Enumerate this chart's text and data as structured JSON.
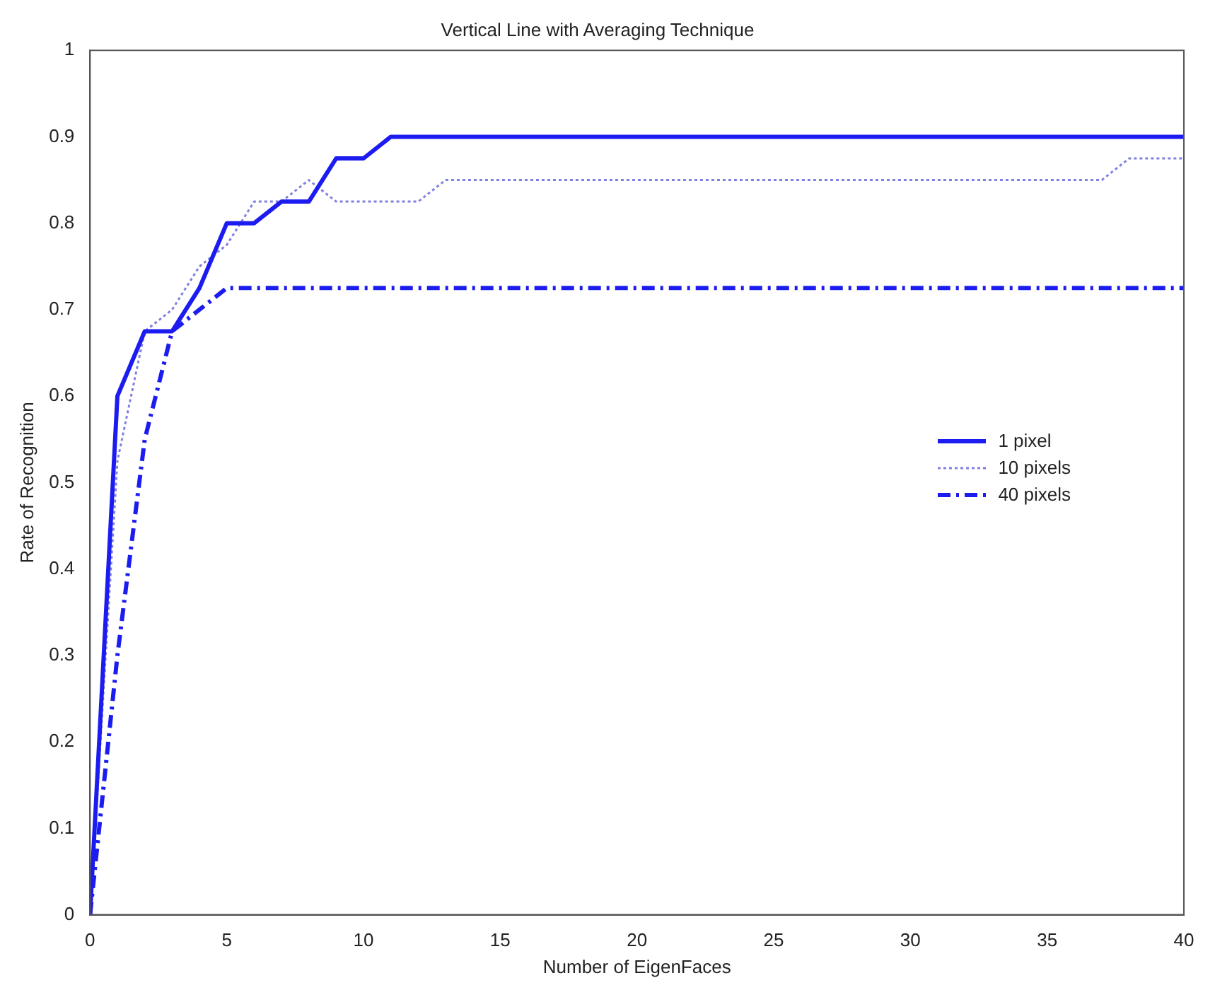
{
  "chart_data": {
    "type": "line",
    "title": "Vertical Line with Averaging Technique",
    "xlabel": "Number of EigenFaces",
    "ylabel": "Rate of Recognition",
    "x": [
      0,
      1,
      2,
      3,
      4,
      5,
      6,
      7,
      8,
      9,
      10,
      11,
      12,
      13,
      14,
      15,
      16,
      17,
      18,
      19,
      20,
      21,
      22,
      23,
      24,
      25,
      26,
      27,
      28,
      29,
      30,
      31,
      32,
      33,
      34,
      35,
      36,
      37,
      38,
      39,
      40
    ],
    "series": [
      {
        "name": "1 pixel",
        "color": "#1c1cf0",
        "line_style": "solid",
        "values": [
          0,
          0.6,
          0.675,
          0.675,
          0.725,
          0.8,
          0.8,
          0.825,
          0.825,
          0.875,
          0.875,
          0.9,
          0.9,
          0.9,
          0.9,
          0.9,
          0.9,
          0.9,
          0.9,
          0.9,
          0.9,
          0.9,
          0.9,
          0.9,
          0.9,
          0.9,
          0.9,
          0.9,
          0.9,
          0.9,
          0.9,
          0.9,
          0.9,
          0.9,
          0.9,
          0.9,
          0.9,
          0.9,
          0.9,
          0.9,
          0.9
        ]
      },
      {
        "name": "10 pixels",
        "color": "#8080e0",
        "line_style": "dotted",
        "values": [
          0,
          0.525,
          0.675,
          0.7,
          0.75,
          0.775,
          0.825,
          0.825,
          0.85,
          0.825,
          0.825,
          0.825,
          0.825,
          0.85,
          0.85,
          0.85,
          0.85,
          0.85,
          0.85,
          0.85,
          0.85,
          0.85,
          0.85,
          0.85,
          0.85,
          0.85,
          0.85,
          0.85,
          0.85,
          0.85,
          0.85,
          0.85,
          0.85,
          0.85,
          0.85,
          0.85,
          0.85,
          0.85,
          0.875,
          0.875,
          0.875
        ]
      },
      {
        "name": "40 pixels",
        "color": "#1c1cf0",
        "line_style": "dashdot",
        "values": [
          0,
          0.3,
          0.55,
          0.675,
          0.7,
          0.725,
          0.725,
          0.725,
          0.725,
          0.725,
          0.725,
          0.725,
          0.725,
          0.725,
          0.725,
          0.725,
          0.725,
          0.725,
          0.725,
          0.725,
          0.725,
          0.725,
          0.725,
          0.725,
          0.725,
          0.725,
          0.725,
          0.725,
          0.725,
          0.725,
          0.725,
          0.725,
          0.725,
          0.725,
          0.725,
          0.725,
          0.725,
          0.725,
          0.725,
          0.725,
          0.725
        ]
      }
    ],
    "xlim": [
      0,
      40
    ],
    "xticks": [
      0,
      5,
      10,
      15,
      20,
      25,
      30,
      35,
      40
    ],
    "ylim": [
      0,
      1
    ],
    "yticks": [
      0,
      0.1,
      0.2,
      0.3,
      0.4,
      0.5,
      0.6,
      0.7,
      0.8,
      0.9,
      1
    ],
    "grid": false,
    "legend": "right",
    "marker": "none"
  }
}
